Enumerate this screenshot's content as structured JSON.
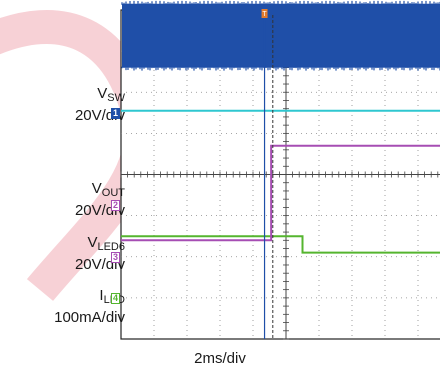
{
  "chart_data": {
    "type": "oscilloscope",
    "timebase": "2ms/div",
    "divisions": {
      "x": 10,
      "y": 8
    },
    "trigger_marker": "T",
    "channels": [
      {
        "id": "1",
        "name": "V",
        "subscript": "SW",
        "scale": "20V/div",
        "color": "#1f4fa8",
        "trace": "switching band, dense 0-30V burst across full span",
        "band_divs": [
          4.15,
          2.6
        ]
      },
      {
        "id": "2",
        "name": "V",
        "subscript": "OUT",
        "scale": "20V/div",
        "color": "#a64db3",
        "trace": "step at trigger",
        "x_divs": [
          0,
          4.55,
          4.55,
          10
        ],
        "y_divs": [
          -1.6,
          -1.6,
          0.7,
          0.7
        ]
      },
      {
        "id": "3",
        "name": "V",
        "subscript": "LED6",
        "scale": "20V/div",
        "color": "#55b52f",
        "trace": "step down after trigger",
        "x_divs": [
          0,
          5.5,
          5.5,
          10
        ],
        "y_divs": [
          -1.5,
          -1.5,
          -1.9,
          -1.9
        ]
      },
      {
        "id": "4",
        "name": "I",
        "subscript": "LED",
        "scale": "100mA/div",
        "color": "#2fc7d0",
        "trace": "flat level",
        "x_divs": [
          0,
          10
        ],
        "y_divs": [
          1.55,
          1.55
        ]
      }
    ]
  }
}
